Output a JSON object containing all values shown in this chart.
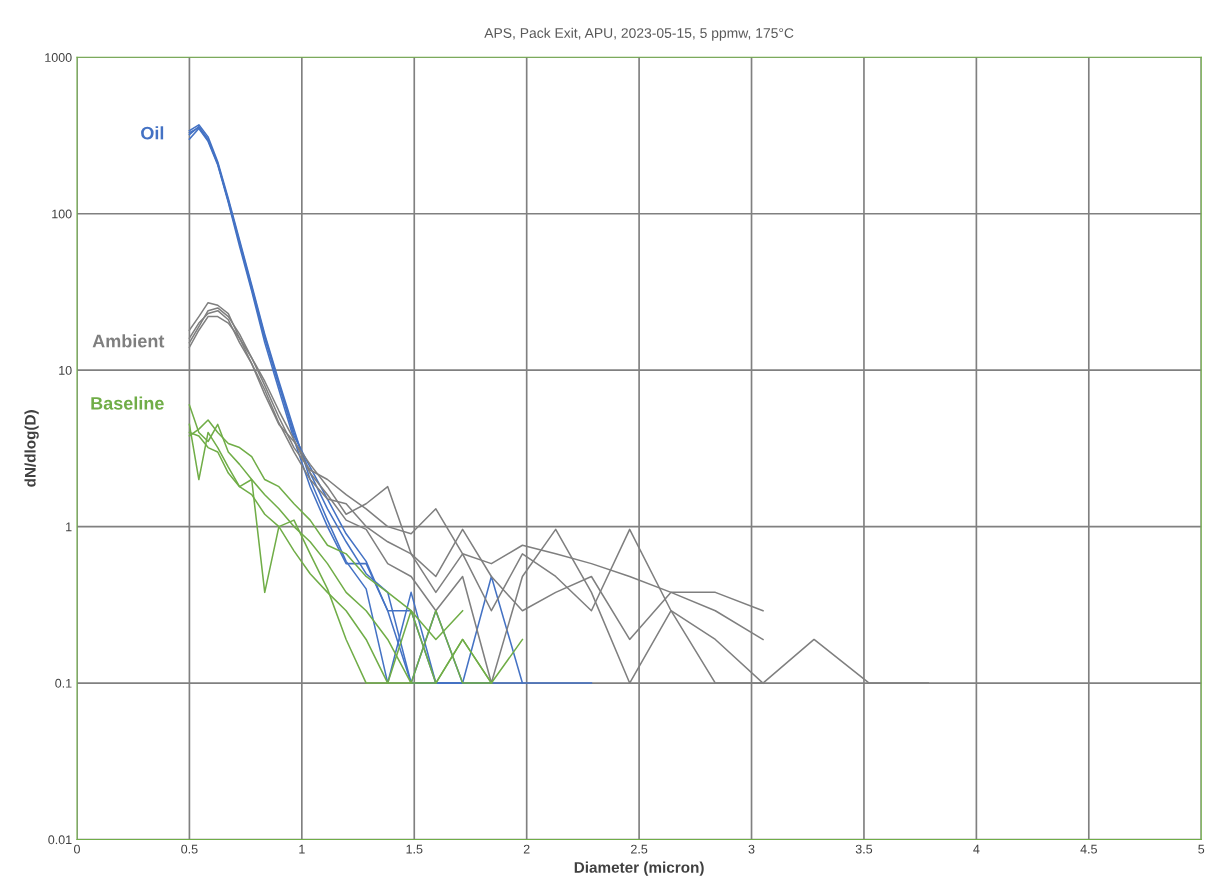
{
  "chart_data": {
    "type": "line",
    "title": "APS, Pack Exit, APU, 2023-05-15, 5 ppmw, 175°C",
    "xlabel": "Diameter (micron)",
    "ylabel": "dN/dlog(D)",
    "x": [
      0.5,
      0.542,
      0.583,
      0.626,
      0.673,
      0.723,
      0.777,
      0.835,
      0.898,
      0.965,
      1.037,
      1.114,
      1.197,
      1.286,
      1.382,
      1.486,
      1.596,
      1.715,
      1.843,
      1.981,
      2.129,
      2.288,
      2.458,
      2.642,
      2.839,
      3.051,
      3.278,
      3.523,
      3.786
    ],
    "series": [
      {
        "name": "Oil",
        "color": "#4472c4",
        "values": [
          320,
          360,
          300,
          210,
          120,
          65,
          33,
          16,
          8,
          4,
          2.2,
          1.3,
          0.8,
          0.5,
          0.38,
          0.1,
          0.1,
          0.1,
          0.1,
          0.1,
          0.1,
          0.1,
          null,
          null,
          null,
          null,
          null,
          null,
          null
        ]
      },
      {
        "color": "#4472c4",
        "values": [
          340,
          370,
          310,
          215,
          125,
          68,
          35,
          17,
          8.5,
          4.2,
          2.0,
          1.1,
          0.6,
          0.4,
          0.1,
          0.38,
          0.1,
          0.1,
          0.48,
          0.1,
          null,
          null,
          null,
          null,
          null,
          null,
          null,
          null,
          null
        ]
      },
      {
        "color": "#4472c4",
        "values": [
          300,
          350,
          290,
          205,
          118,
          62,
          32,
          15,
          7.5,
          3.6,
          1.8,
          1.0,
          0.58,
          0.58,
          0.29,
          0.1,
          0.29,
          0.1,
          null,
          null,
          null,
          null,
          null,
          null,
          null,
          null,
          null,
          null,
          null
        ]
      },
      {
        "color": "#4472c4",
        "values": [
          330,
          355,
          295,
          208,
          122,
          66,
          34,
          16.5,
          8.2,
          3.8,
          2.4,
          1.5,
          0.9,
          0.6,
          0.29,
          0.29,
          0.1,
          0.1,
          null,
          null,
          null,
          null,
          null,
          null,
          null,
          null,
          null,
          null,
          null
        ]
      },
      {
        "name": "Ambient",
        "color": "#7f7f7f",
        "values": [
          15,
          19,
          24,
          25,
          22,
          17,
          12,
          8,
          5,
          3.2,
          2.3,
          2.0,
          1.6,
          1.3,
          1.0,
          0.9,
          1.3,
          0.67,
          0.58,
          0.76,
          0.67,
          0.58,
          0.48,
          0.38,
          0.29,
          0.19,
          null,
          null,
          null
        ]
      },
      {
        "color": "#7f7f7f",
        "values": [
          18,
          22,
          27,
          26,
          23,
          16,
          11,
          7.5,
          4.6,
          3.0,
          2.0,
          1.5,
          1.4,
          1.0,
          0.8,
          0.67,
          0.38,
          0.67,
          0.29,
          0.67,
          0.48,
          0.29,
          0.96,
          0.29,
          0.1,
          0.1,
          0.19,
          0.1,
          0.1
        ]
      },
      {
        "color": "#7f7f7f",
        "values": [
          16,
          20,
          23,
          24,
          21,
          15,
          11,
          7,
          4.5,
          3.5,
          2.5,
          1.8,
          1.2,
          1.4,
          1.8,
          0.67,
          0.48,
          0.96,
          0.48,
          0.29,
          0.38,
          0.48,
          0.19,
          0.38,
          0.38,
          0.29,
          null,
          null,
          null
        ]
      },
      {
        "color": "#7f7f7f",
        "values": [
          14,
          18,
          22,
          22,
          20,
          16,
          12,
          8.5,
          5.5,
          3.6,
          2.2,
          1.6,
          1.1,
          0.96,
          0.58,
          0.48,
          0.29,
          0.48,
          0.1,
          0.48,
          0.96,
          0.38,
          0.1,
          0.29,
          0.19,
          0.1,
          null,
          null,
          null
        ]
      },
      {
        "name": "Baseline",
        "color": "#70ad47",
        "values": [
          6,
          4,
          3.5,
          4.5,
          3.0,
          2.5,
          2.0,
          1.6,
          1.3,
          1.0,
          0.8,
          0.58,
          0.38,
          0.29,
          0.19,
          0.1,
          0.29,
          0.1,
          0.1,
          0.19,
          null,
          null,
          null,
          null,
          null,
          null,
          null,
          null,
          null
        ]
      },
      {
        "color": "#70ad47",
        "values": [
          4.5,
          2.0,
          4.0,
          3.2,
          2.4,
          1.8,
          2.0,
          0.38,
          1.0,
          1.1,
          0.67,
          0.4,
          0.19,
          0.1,
          0.1,
          0.29,
          0.1,
          0.19,
          0.1,
          null,
          null,
          null,
          null,
          null,
          null,
          null,
          null,
          null,
          null
        ]
      },
      {
        "color": "#70ad47",
        "values": [
          3.8,
          4.2,
          4.8,
          4.0,
          3.4,
          3.2,
          2.8,
          2.0,
          1.8,
          1.4,
          1.1,
          0.76,
          0.67,
          0.48,
          0.38,
          0.29,
          0.19,
          0.29,
          null,
          null,
          null,
          null,
          null,
          null,
          null,
          null,
          null,
          null,
          null
        ]
      },
      {
        "color": "#70ad47",
        "values": [
          4.0,
          3.8,
          3.2,
          3.0,
          2.2,
          1.8,
          1.6,
          1.2,
          1.0,
          0.7,
          0.5,
          0.38,
          0.29,
          0.19,
          0.1,
          0.1,
          0.1,
          0.19,
          0.1,
          null,
          null,
          null,
          null,
          null,
          null,
          null,
          null,
          null,
          null
        ]
      }
    ],
    "log": true,
    "grid": true,
    "legend": false,
    "xlim": [
      0,
      5
    ],
    "xticks": [
      0,
      0.5,
      1,
      1.5,
      2,
      2.5,
      3,
      3.5,
      4,
      4.5,
      5
    ],
    "ylim": [
      0.01,
      1000
    ],
    "yticks": [
      0.01,
      0.1,
      1,
      10,
      100,
      1000
    ]
  }
}
